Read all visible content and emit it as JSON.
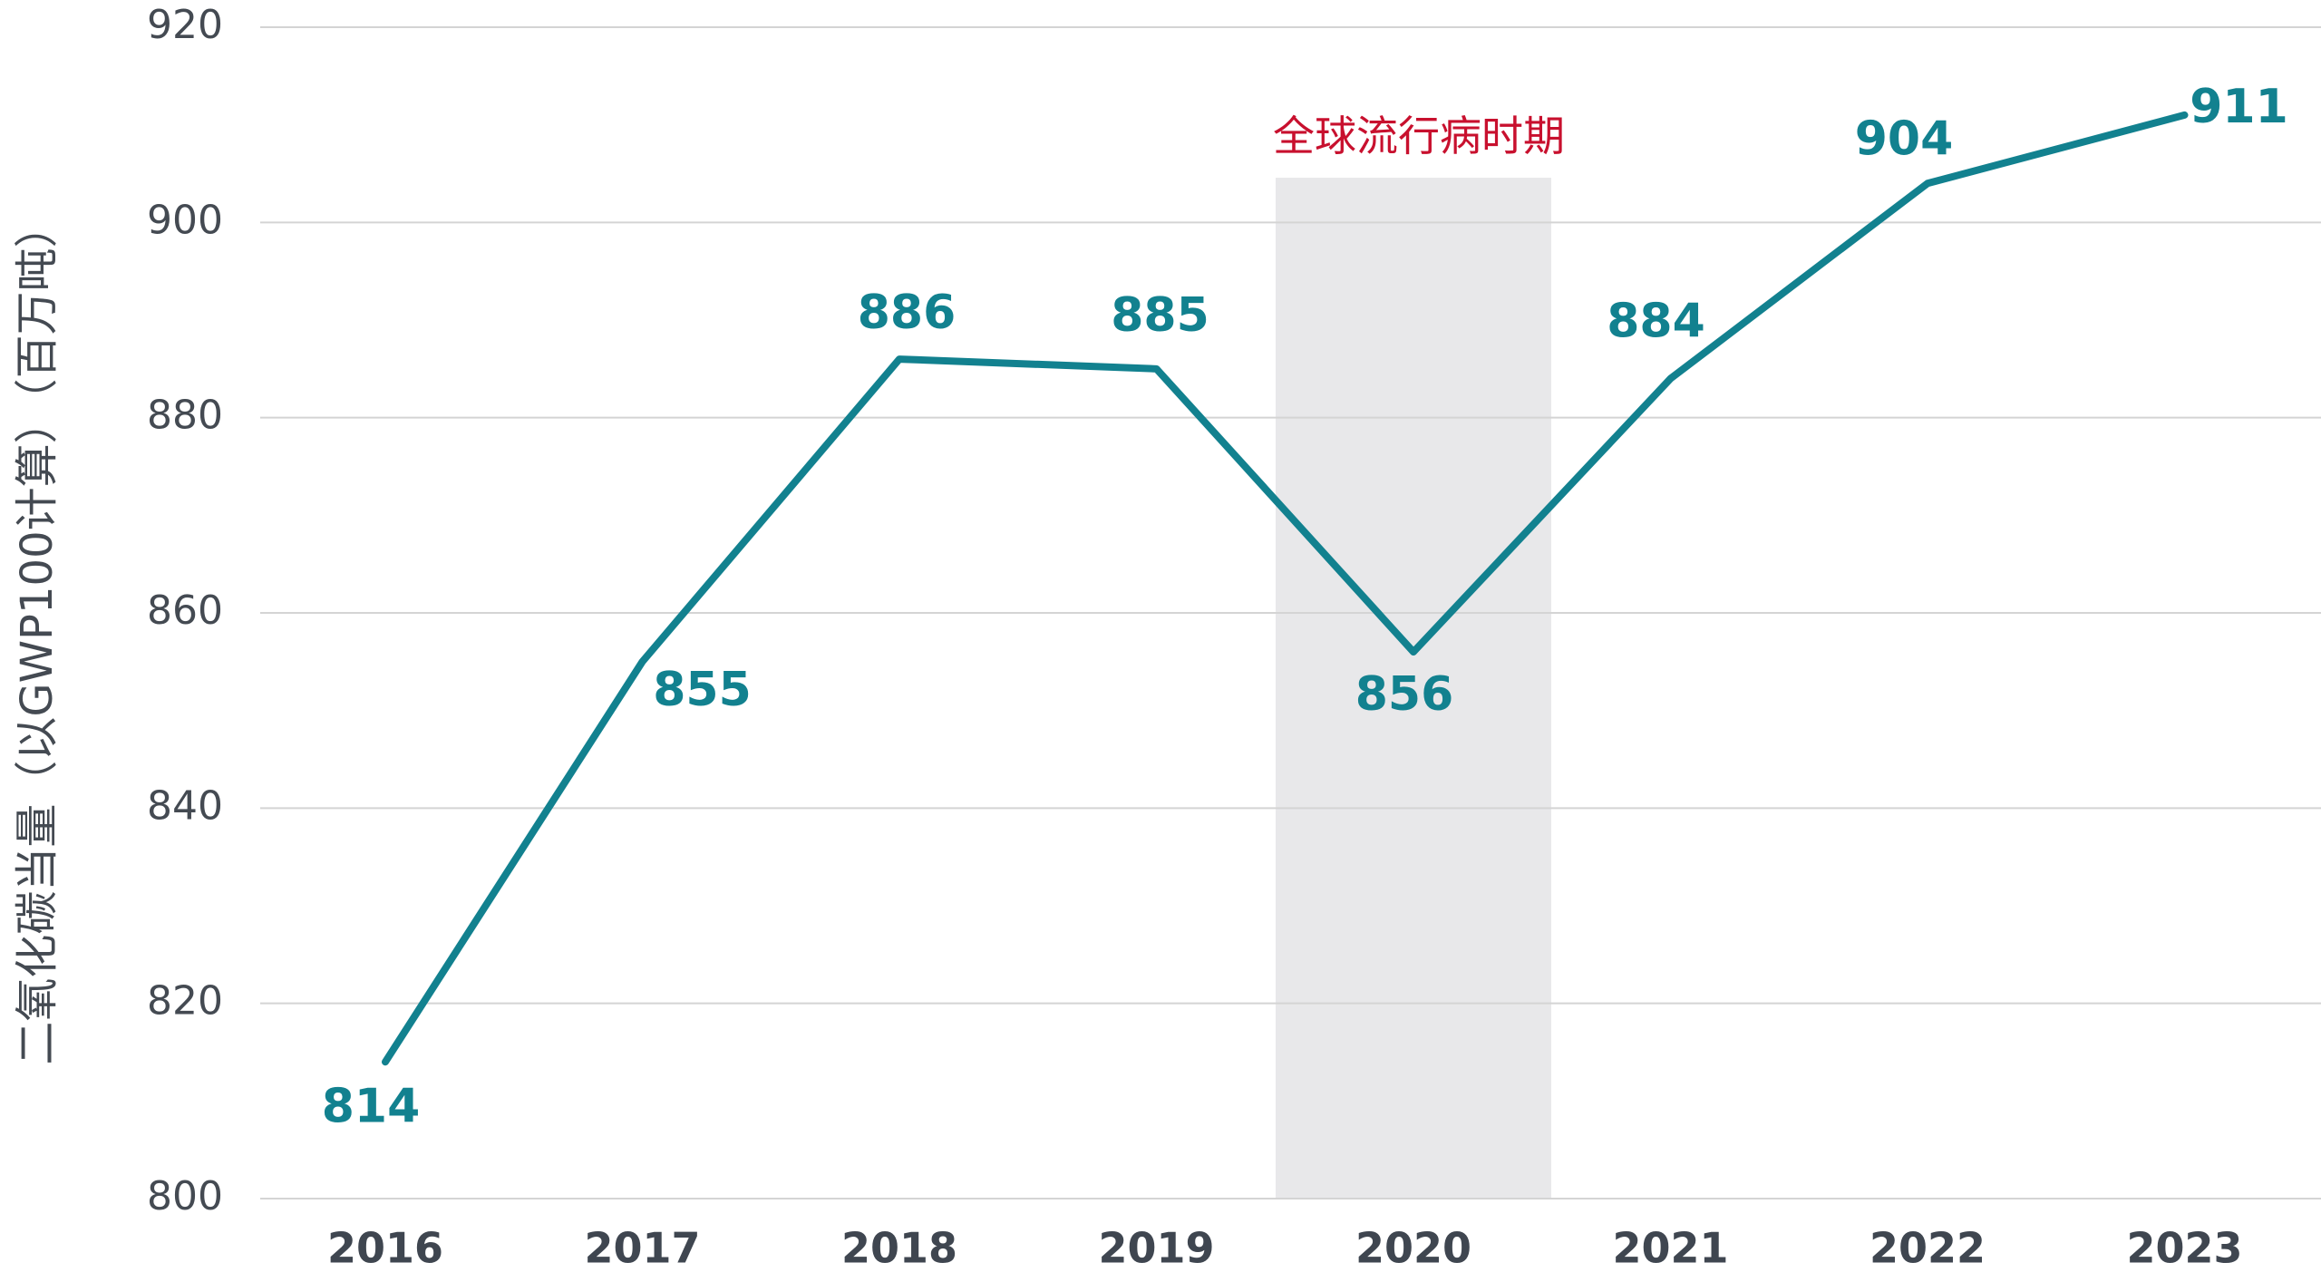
{
  "chart_data": {
    "type": "line",
    "x": [
      "2016",
      "2017",
      "2018",
      "2019",
      "2020",
      "2021",
      "2022",
      "2023"
    ],
    "series": [
      {
        "values": [
          814,
          855,
          886,
          885,
          856,
          884,
          904,
          911
        ]
      }
    ],
    "data_labels": [
      "814",
      "855",
      "886",
      "885",
      "856",
      "884",
      "904",
      "911"
    ],
    "ylabel": "二氧化碳当量（以GWP100计算）（百万吨）",
    "ylim": [
      800,
      920
    ],
    "yticks": [
      800,
      820,
      840,
      860,
      880,
      900,
      920
    ],
    "ytick_labels": [
      "800",
      "820",
      "840",
      "860",
      "880",
      "900",
      "920"
    ],
    "grid": true,
    "highlight_band": {
      "label": "全球流行病时期",
      "category": "2020",
      "color": "#e8e8ea",
      "label_color": "#c8102e"
    },
    "line_color": "#12818f"
  }
}
